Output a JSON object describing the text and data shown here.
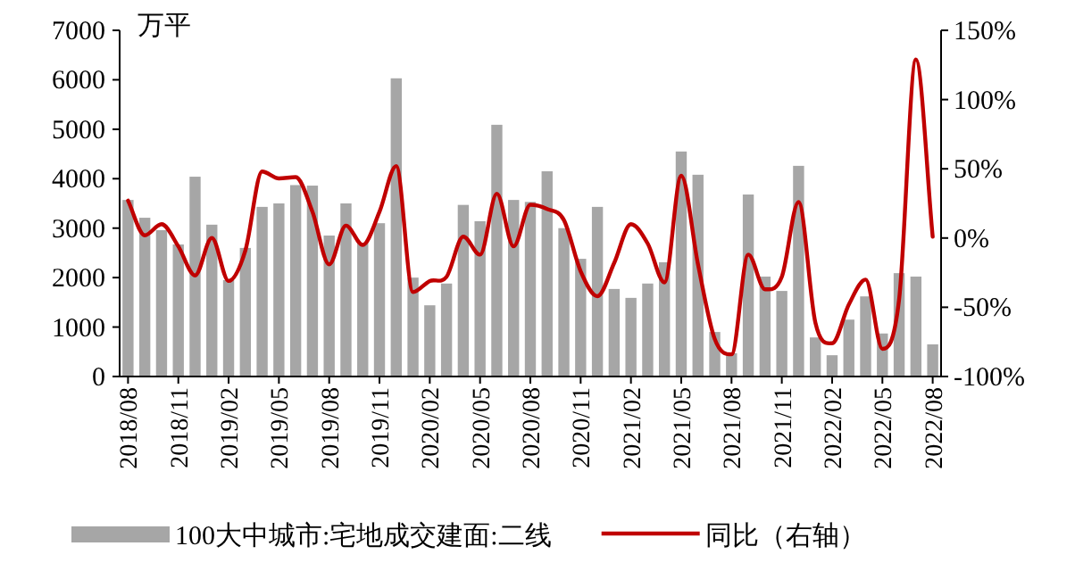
{
  "chart_data": {
    "type": "bar",
    "ylabel": "万平",
    "legend": "bottom",
    "categories": [
      "2018/08",
      null,
      null,
      "2018/11",
      null,
      null,
      "2019/02",
      null,
      null,
      "2019/05",
      null,
      null,
      "2019/08",
      null,
      null,
      "2019/11",
      null,
      null,
      "2020/02",
      null,
      null,
      "2020/05",
      null,
      null,
      "2020/08",
      null,
      null,
      "2020/11",
      null,
      null,
      "2021/02",
      null,
      null,
      "2021/05",
      null,
      null,
      "2021/08",
      null,
      null,
      "2021/11",
      null,
      null,
      "2022/02",
      null,
      null,
      "2022/05",
      null,
      null,
      "2022/08"
    ],
    "series": [
      {
        "name": "100大中城市:宅地成交建面:二线",
        "color": "#a6a6a6",
        "values": [
          3570,
          3210,
          2960,
          2670,
          4040,
          3070,
          1950,
          2600,
          3430,
          3500,
          3870,
          3860,
          2850,
          3500,
          2700,
          3100,
          6030,
          2000,
          1440,
          1880,
          3470,
          3140,
          5090,
          3570,
          3530,
          4150,
          3000,
          2380,
          3430,
          1770,
          1590,
          1880,
          2310,
          4550,
          4080,
          900,
          470,
          3680,
          2020,
          1730,
          4260,
          790,
          430,
          1150,
          1620,
          870,
          2090,
          2020,
          650
        ]
      },
      {
        "name": "同比（右轴）",
        "type": "line",
        "axis": "y2",
        "color": "#c00000",
        "values": [
          27,
          2,
          10,
          -6,
          -27,
          0,
          -31,
          -9,
          48,
          43,
          44,
          19,
          -19,
          9,
          -5,
          19,
          52,
          -39,
          -31,
          -28,
          1,
          -12,
          32,
          -6,
          24,
          21,
          13,
          -24,
          -42,
          -18,
          10,
          -4,
          -32,
          45,
          -19,
          -73,
          -84,
          -12,
          -37,
          -28,
          26,
          -61,
          -76,
          -48,
          -30,
          -80,
          -44,
          129,
          1
        ]
      }
    ],
    "ylim": [
      0,
      7000
    ],
    "yticks": [
      0,
      1000,
      2000,
      3000,
      4000,
      5000,
      6000,
      7000
    ],
    "y2lim": [
      -100,
      150
    ],
    "y2ticks": [
      {
        "value": -100,
        "label": "-100%"
      },
      {
        "value": -50,
        "label": "-50%"
      },
      {
        "value": 0,
        "label": "0%"
      },
      {
        "value": 50,
        "label": "50%"
      },
      {
        "value": 100,
        "label": "100%"
      },
      {
        "value": 150,
        "label": "150%"
      }
    ]
  }
}
